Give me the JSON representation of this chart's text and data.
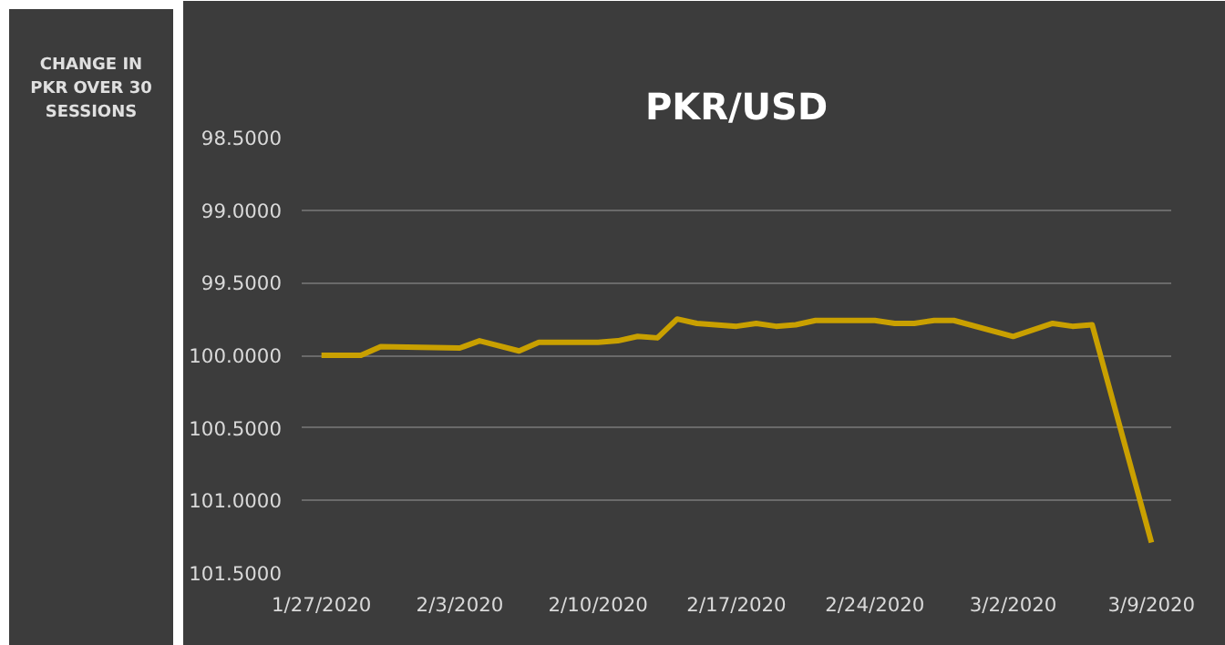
{
  "chart_data": {
    "type": "line",
    "title": "PKR/USD",
    "ylabel": "CHANGE IN PKR OVER 30 SESSIONS",
    "x": [
      "2020-01-27",
      "2020-01-29",
      "2020-01-30",
      "2020-02-03",
      "2020-02-04",
      "2020-02-06",
      "2020-02-07",
      "2020-02-10",
      "2020-02-11",
      "2020-02-12",
      "2020-02-13",
      "2020-02-14",
      "2020-02-15",
      "2020-02-17",
      "2020-02-18",
      "2020-02-19",
      "2020-02-20",
      "2020-02-21",
      "2020-02-24",
      "2020-02-25",
      "2020-02-26",
      "2020-02-27",
      "2020-02-28",
      "2020-03-02",
      "2020-03-04",
      "2020-03-05",
      "2020-03-06",
      "2020-03-09"
    ],
    "series": [
      {
        "color": "#c9a000",
        "values": [
          100.0,
          100.0,
          99.94,
          99.95,
          99.9,
          99.97,
          99.91,
          99.91,
          99.9,
          99.87,
          99.88,
          99.75,
          99.78,
          99.8,
          99.78,
          99.8,
          99.79,
          99.76,
          99.76,
          99.78,
          99.78,
          99.76,
          99.76,
          99.87,
          99.78,
          99.8,
          99.79,
          101.29
        ]
      }
    ],
    "xlim": [
      "2020-01-26",
      "2020-03-10"
    ],
    "xticks": [
      {
        "value": "2020-01-27",
        "label": "1/27/2020"
      },
      {
        "value": "2020-02-03",
        "label": "2/3/2020"
      },
      {
        "value": "2020-02-10",
        "label": "2/10/2020"
      },
      {
        "value": "2020-02-17",
        "label": "2/17/2020"
      },
      {
        "value": "2020-02-24",
        "label": "2/24/2020"
      },
      {
        "value": "2020-03-02",
        "label": "3/2/2020"
      },
      {
        "value": "2020-03-09",
        "label": "3/9/2020"
      }
    ],
    "ylim": [
      101.5,
      98.5
    ],
    "yticks": [
      {
        "value": 98.5,
        "label": "98.5000"
      },
      {
        "value": 99,
        "label": "99.0000"
      },
      {
        "value": 99.5,
        "label": "99.5000"
      },
      {
        "value": 100,
        "label": "100.0000"
      },
      {
        "value": 100.5,
        "label": "100.5000"
      },
      {
        "value": 101,
        "label": "101.0000"
      },
      {
        "value": 101.5,
        "label": "101.5000"
      }
    ],
    "grid": "y",
    "marker": "none",
    "line_style": "solid"
  }
}
